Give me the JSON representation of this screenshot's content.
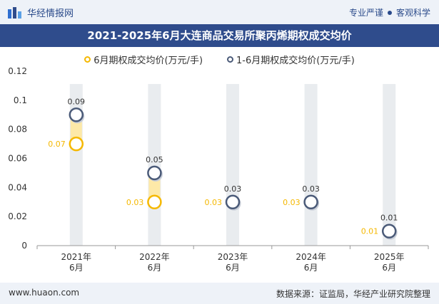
{
  "header": {
    "brand": "华经情报网",
    "slogan_left": "专业严谨",
    "slogan_right": "客观科学"
  },
  "footer": {
    "website": "www.huaon.com",
    "source": "数据来源：证监局，华经产业研究院整理"
  },
  "colors": {
    "june": "#f5b800",
    "cumulative": "#4a5a78",
    "band": "#fde9a8",
    "bar": "#e9ecef"
  },
  "chart_data": {
    "type": "dot-range",
    "title": "2021-2025年6月大连商品交易所聚丙烯期权成交均价",
    "categories": [
      "2021年\n6月",
      "2022年\n6月",
      "2023年\n6月",
      "2024年\n6月",
      "2025年\n6月"
    ],
    "series": [
      {
        "name": "6月期权成交均价(万元/手)",
        "values": [
          0.07,
          0.03,
          0.03,
          0.03,
          0.01
        ],
        "labels": [
          "0.07",
          "0.03",
          "0.03",
          "0.03",
          "0.01"
        ]
      },
      {
        "name": "1-6月期权成交均价(万元/手)",
        "values": [
          0.09,
          0.05,
          0.03,
          0.03,
          0.01
        ],
        "labels": [
          "0.09",
          "0.05",
          "0.03",
          "0.03",
          "0.01"
        ]
      }
    ],
    "ylim": [
      0,
      0.12
    ],
    "yticks": [
      "0",
      "0.02",
      "0.04",
      "0.06",
      "0.08",
      "0.1",
      "0.12"
    ],
    "xlabel": "",
    "ylabel": "",
    "legend_position": "top",
    "grid": false
  }
}
